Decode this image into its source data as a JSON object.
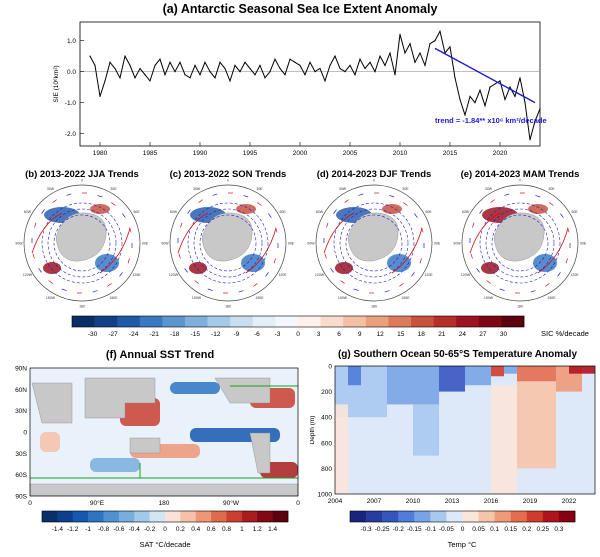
{
  "chart_data": [
    {
      "id": "a",
      "type": "line",
      "title": "(a) Antarctic Seasonal Sea Ice Extent Anomaly",
      "xlabel": "",
      "ylabel": "SIE (10⁶km²)",
      "xlim": [
        1978,
        2024
      ],
      "ylim": [
        -2.4,
        1.6
      ],
      "xticks": [
        "1980",
        "1985",
        "1990",
        "1995",
        "2000",
        "2005",
        "2010",
        "2015",
        "2020"
      ],
      "yticks": [
        "1.0",
        "0.0",
        "-1.0",
        "-2.0"
      ],
      "x": [
        1979.0,
        1979.5,
        1980.0,
        1980.5,
        1981.0,
        1981.5,
        1982.0,
        1982.5,
        1983.0,
        1983.5,
        1984.0,
        1984.5,
        1985.0,
        1985.5,
        1986.0,
        1986.5,
        1987.0,
        1987.5,
        1988.0,
        1988.5,
        1989.0,
        1989.5,
        1990.0,
        1990.5,
        1991.0,
        1991.5,
        1992.0,
        1992.5,
        1993.0,
        1993.5,
        1994.0,
        1994.5,
        1995.0,
        1995.5,
        1996.0,
        1996.5,
        1997.0,
        1997.5,
        1998.0,
        1998.5,
        1999.0,
        1999.5,
        2000.0,
        2000.5,
        2001.0,
        2001.5,
        2002.0,
        2002.5,
        2003.0,
        2003.5,
        2004.0,
        2004.5,
        2005.0,
        2005.5,
        2006.0,
        2006.5,
        2007.0,
        2007.5,
        2008.0,
        2008.5,
        2009.0,
        2009.5,
        2010.0,
        2010.5,
        2011.0,
        2011.5,
        2012.0,
        2012.5,
        2013.0,
        2013.5,
        2014.0,
        2014.5,
        2015.0,
        2015.5,
        2016.0,
        2016.5,
        2017.0,
        2017.5,
        2018.0,
        2018.5,
        2019.0,
        2019.5,
        2020.0,
        2020.5,
        2021.0,
        2021.5,
        2022.0,
        2022.5,
        2023.0,
        2023.5,
        2024.0
      ],
      "series": [
        {
          "name": "SIE anomaly",
          "values": [
            0.5,
            0.2,
            -0.8,
            -0.3,
            0.3,
            0.1,
            -0.2,
            0.5,
            0.2,
            -0.2,
            0.1,
            -0.1,
            -0.3,
            0.2,
            0.4,
            -0.1,
            0.3,
            0.0,
            0.3,
            -0.1,
            -0.2,
            0.2,
            -0.1,
            0.3,
            0.0,
            -0.2,
            0.3,
            0.1,
            -0.3,
            0.2,
            0.0,
            0.3,
            0.1,
            -0.1,
            0.2,
            -0.2,
            0.0,
            0.4,
            0.1,
            -0.1,
            0.4,
            0.3,
            0.2,
            -0.1,
            0.3,
            0.0,
            0.1,
            -0.3,
            0.2,
            0.5,
            0.1,
            0.0,
            0.2,
            -0.1,
            0.4,
            0.1,
            0.3,
            0.0,
            0.5,
            0.2,
            0.6,
            -0.1,
            1.2,
            0.6,
            0.9,
            0.3,
            0.6,
            0.2,
            0.9,
            1.0,
            1.3,
            0.6,
            0.8,
            -0.2,
            -0.9,
            -1.4,
            -0.8,
            -1.0,
            -0.6,
            -1.1,
            -0.5,
            -0.4,
            -0.3,
            -0.9,
            -0.5,
            -0.8,
            -0.2,
            -1.0,
            -2.2,
            -1.6,
            -1.2
          ]
        },
        {
          "name": "trend",
          "x": [
            2013.5,
            2023.5
          ],
          "values": [
            0.75,
            -1.0
          ],
          "label": "trend = -1.84** x10⁶ km²/decade"
        }
      ]
    },
    {
      "id": "b-e",
      "type": "heatmap",
      "panels": [
        {
          "title": "(b) 2013-2022 JJA Trends"
        },
        {
          "title": "(c) 2013-2022 SON Trends"
        },
        {
          "title": "(d) 2014-2023 DJF Trends"
        },
        {
          "title": "(e) 2014-2023 MAM Trends"
        }
      ],
      "lon_labels": [
        "0",
        "30E",
        "60E",
        "90E",
        "120E",
        "150E",
        "180",
        "150W",
        "120W",
        "90W",
        "60W",
        "30W"
      ],
      "colorbar": {
        "label": "SIC %/decade",
        "ticks": [
          "-30",
          "-27",
          "-24",
          "-21",
          "-18",
          "-15",
          "-12",
          "-9",
          "-6",
          "-3",
          "0",
          "3",
          "6",
          "9",
          "12",
          "15",
          "18",
          "21",
          "24",
          "27",
          "30"
        ],
        "colors": [
          "#0b2e66",
          "#133f86",
          "#1f59a8",
          "#3b78c2",
          "#5b95d0",
          "#7fb0dd",
          "#a5c9e8",
          "#c8dff1",
          "#e2eef8",
          "#f4f8fc",
          "#fdf1ea",
          "#f9dccb",
          "#f3c0a6",
          "#ea9f7e",
          "#dc7b5b",
          "#c9523d",
          "#b5302a",
          "#9b1420",
          "#7e0716",
          "#5c0010"
        ]
      }
    },
    {
      "id": "f",
      "type": "heatmap",
      "title": "(f) Annual SST Trend",
      "yticks": [
        "90N",
        "60N",
        "30N",
        "0",
        "30S",
        "60S",
        "90S"
      ],
      "xticks": [
        "0",
        "90°E",
        "180",
        "90°W",
        "0"
      ],
      "colorbar": {
        "label": "SAT °C/decade",
        "ticks": [
          "-1.4",
          "-1.2",
          "-1",
          "-0.8",
          "-0.6",
          "-0.4",
          "-0.2",
          "0",
          "0.2",
          "0.4",
          "0.6",
          "0.8",
          "1",
          "1.2",
          "1.4"
        ],
        "colors": [
          "#08306b",
          "#0d3f8f",
          "#1558b0",
          "#2d74c4",
          "#4f91d2",
          "#78aedd",
          "#a3c9e8",
          "#d1e5f4",
          "#fbe2d6",
          "#f7c0a8",
          "#ef9677",
          "#e06a4c",
          "#c93f30",
          "#aa1d1f",
          "#820814",
          "#5e0010"
        ]
      }
    },
    {
      "id": "g",
      "type": "heatmap",
      "title": "(g) Southern Ocean 50-65°S Temperature Anomaly",
      "ylabel": "Depth (m)",
      "yticks": [
        "0",
        "200",
        "400",
        "600",
        "800",
        "1000"
      ],
      "ylim": [
        0,
        1000
      ],
      "xticks": [
        "2004",
        "2007",
        "2010",
        "2013",
        "2016",
        "2019",
        "2022"
      ],
      "xlim": [
        2004,
        2024
      ],
      "colorbar": {
        "label": "Temp °C",
        "ticks": [
          "-0.3",
          "-0.25",
          "-0.2",
          "-0.15",
          "-0.1",
          "-0.05",
          "0",
          "0.05",
          "0.1",
          "0.15",
          "0.2",
          "0.25",
          "0.3"
        ],
        "colors": [
          "#1a237e",
          "#283b9e",
          "#3556c0",
          "#4f7dd9",
          "#78a4e6",
          "#a9c8f0",
          "#dde9f8",
          "#fbe6da",
          "#f7c4aa",
          "#f09a78",
          "#e46d4c",
          "#cf3b2c",
          "#b0131d",
          "#860012"
        ]
      }
    }
  ]
}
